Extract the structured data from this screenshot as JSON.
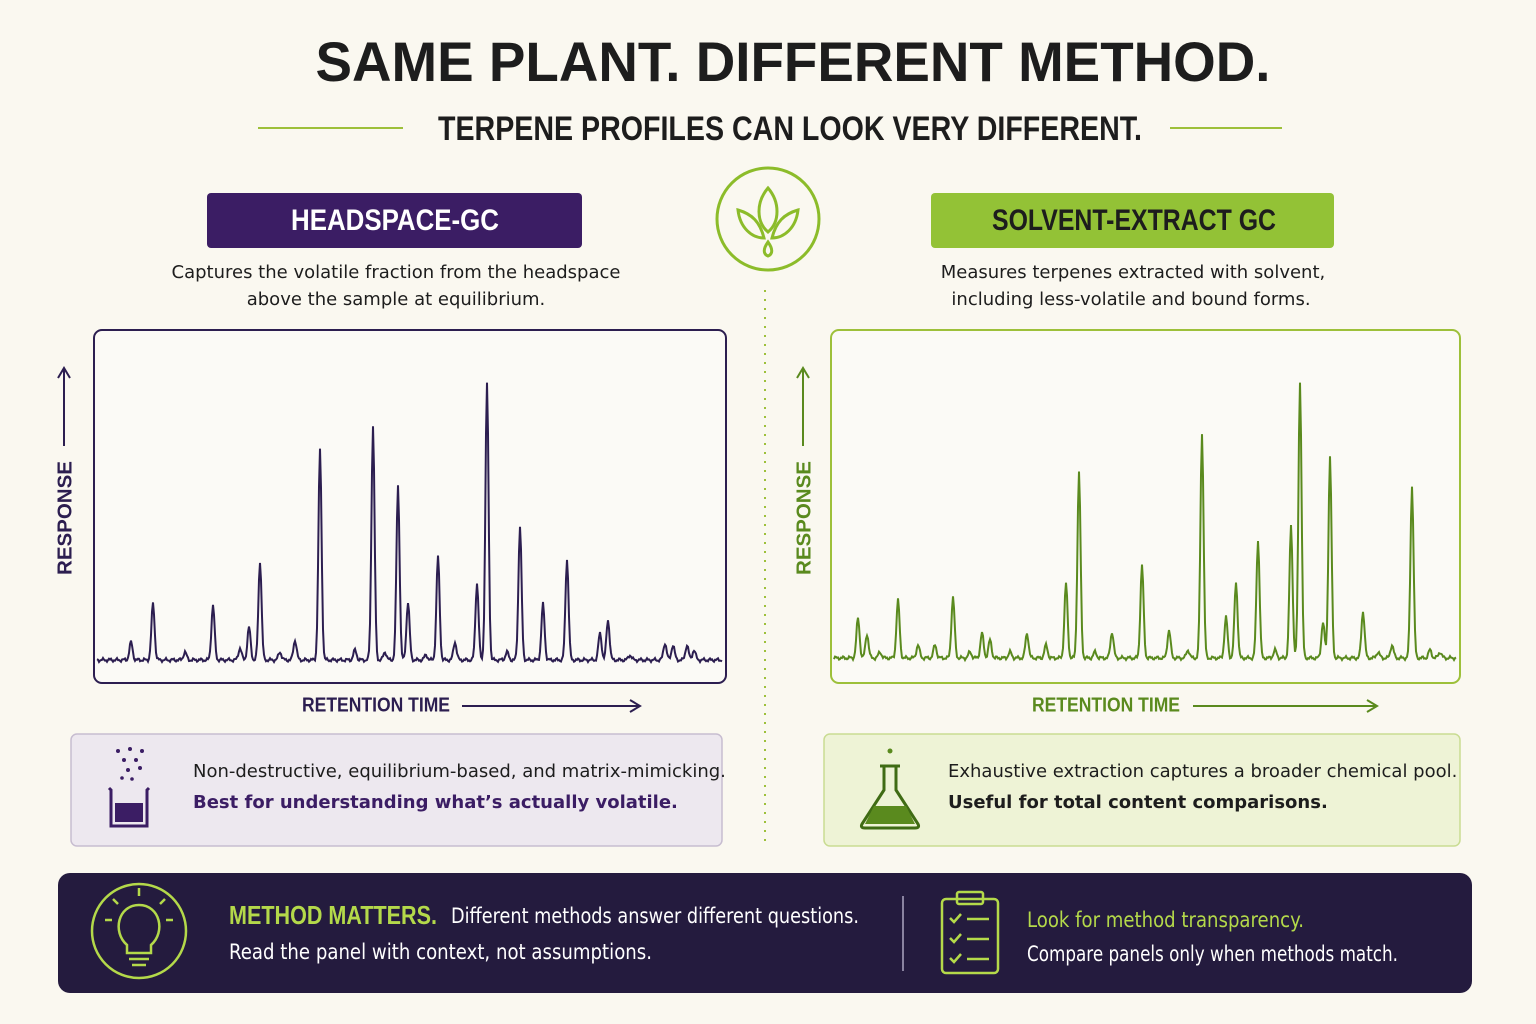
{
  "header": {
    "title": "SAME PLANT. DIFFERENT METHOD.",
    "subtitle": "TERPENE PROFILES CAN LOOK VERY DIFFERENT."
  },
  "left": {
    "label": "HEADSPACE-GC",
    "description": [
      "Captures the volatile fraction from the headspace",
      "above the sample at equilibrium."
    ],
    "y_axis": "RESPONSE",
    "x_axis": "RETENTION TIME",
    "note": [
      "Non-destructive, equilibrium-based, and matrix-mimicking.",
      "Best for understanding what’s actually volatile."
    ]
  },
  "right": {
    "label": "SOLVENT-EXTRACT GC",
    "description": [
      "Measures terpenes extracted with solvent,",
      "including less-volatile and bound forms."
    ],
    "y_axis": "RESPONSE",
    "x_axis": "RETENTION TIME",
    "note": [
      "Exhaustive extraction captures a broader chemical pool.",
      "Useful for total content comparisons."
    ]
  },
  "footer": {
    "left": {
      "heading": "METHOD MATTERS.",
      "line1": "Different methods answer different questions.",
      "line2": "Read the panel with context, not assumptions."
    },
    "right": {
      "heading": "Look for method transparency.",
      "line": "Compare panels only when methods match."
    }
  }
}
